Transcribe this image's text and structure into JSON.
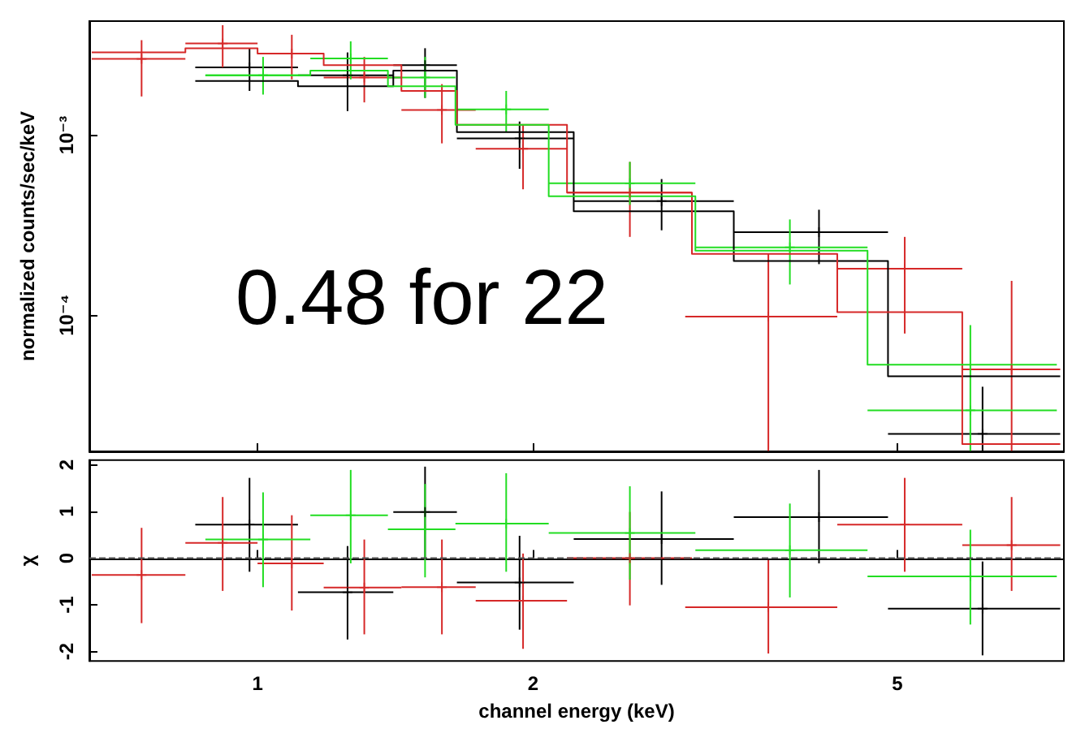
{
  "chart_data": [
    {
      "type": "scatter",
      "ylabel": "normalized counts/sec/keV",
      "log": "xy",
      "xlim": [
        0.655,
        7.6
      ],
      "ylim": [
        1.75e-05,
        0.0043
      ],
      "xticks": [
        {
          "value": 1,
          "label": null
        },
        {
          "value": 2,
          "label": null
        },
        {
          "value": 5,
          "label": null
        }
      ],
      "yticks": [
        {
          "value": 0.001,
          "label": "10⁻³"
        },
        {
          "value": 0.0001,
          "label": "10⁻⁴"
        }
      ],
      "tick_labels": "y",
      "marker": "cross",
      "annotations": [
        "0.48 for 22"
      ],
      "series": [
        {
          "color": "#000000",
          "x": [
            0.98,
            1.254,
            1.524,
            1.933,
            2.763,
            4.105,
            6.194
          ],
          "values": [
            0.00238,
            0.00215,
            0.00245,
            0.00096,
            0.00043,
            0.000289,
            2.19e-05
          ],
          "errors": [
            [
              0.00176,
              0.00304
            ],
            [
              0.00136,
              0.00288
            ],
            [
              0.00161,
              0.00304
            ],
            [
              0.00065,
              0.00119
            ],
            [
              0.000296,
              0.00057
            ],
            [
              0.000192,
              0.000385
            ],
            [
              1.76e-05,
              4e-05
            ]
          ],
          "xerrors": [
            [
              0.855,
              1.107
            ],
            [
              1.107,
              1.407
            ],
            [
              1.407,
              1.651
            ],
            [
              1.651,
              2.215
            ],
            [
              2.215,
              3.313
            ],
            [
              3.313,
              4.883
            ],
            [
              4.883,
              7.53
            ]
          ]
        },
        {
          "color": "#d62828",
          "x": [
            0.747,
            0.916,
            1.09,
            1.308,
            1.59,
            1.95,
            2.551,
            3.614,
            5.093,
            6.664
          ],
          "values": [
            0.00265,
            0.00323,
            0.00284,
            0.00209,
            0.00138,
            0.00084,
            0.00048,
            9.8e-05,
            0.000181,
            5e-05
          ],
          "errors": [
            [
              0.00164,
              0.00337
            ],
            [
              0.00238,
              0.00408
            ],
            [
              0.00204,
              0.00361
            ],
            [
              0.00152,
              0.00272
            ],
            [
              0.0009,
              0.00192
            ],
            [
              0.0005,
              0.00114
            ],
            [
              0.000272,
              0.00071
            ],
            [
              1.76e-05,
              0.000219
            ],
            [
              7.9e-05,
              0.000272
            ],
            [
              1.76e-05,
              0.000155
            ]
          ],
          "xerrors": [
            [
              0.659,
              0.834
            ],
            [
              0.834,
              1.0
            ],
            [
              1.0,
              1.181
            ],
            [
              1.181,
              1.436
            ],
            [
              1.436,
              1.731
            ],
            [
              1.731,
              2.178
            ],
            [
              2.178,
              2.982
            ],
            [
              2.932,
              4.298
            ],
            [
              4.298,
              5.886
            ],
            [
              5.886,
              7.53
            ]
          ]
        },
        {
          "color": "#22dd22",
          "x": [
            1.014,
            1.264,
            1.524,
            1.869,
            2.551,
            3.815,
            6.007
          ],
          "values": [
            0.00215,
            0.00267,
            0.00209,
            0.00139,
            0.00054,
            0.000238,
            2.96e-05
          ],
          "errors": [
            [
              0.00168,
              0.00272
            ],
            [
              0.00204,
              0.00332
            ],
            [
              0.00161,
              0.00272
            ],
            [
              0.00104,
              0.00176
            ],
            [
              0.00041,
              0.00071
            ],
            [
              0.000148,
              0.00034
            ],
            [
              1.76e-05,
              8.8e-05
            ]
          ],
          "xerrors": [
            [
              0.877,
              1.142
            ],
            [
              1.142,
              1.388
            ],
            [
              1.388,
              1.645
            ],
            [
              1.645,
              2.08
            ],
            [
              2.08,
              3.008
            ],
            [
              3.008,
              4.638
            ],
            [
              4.638,
              7.466
            ]
          ]
        },
        {
          "type": "step",
          "marker": "none",
          "color": "#000000",
          "x": [
            0.855,
            1.107,
            1.407,
            1.651,
            2.215,
            3.313,
            4.883,
            7.53
          ],
          "values": [
            0.002,
            0.00187,
            0.00228,
            0.00104,
            0.000378,
            0.0002,
            4.57e-05,
            4.57e-05
          ]
        },
        {
          "type": "step",
          "marker": "none",
          "color": "#d62828",
          "x": [
            0.659,
            0.834,
            1.0,
            1.181,
            1.436,
            1.651,
            2.178,
            2.982,
            4.298,
            5.886,
            7.53
          ],
          "values": [
            0.00288,
            0.00304,
            0.00284,
            0.00245,
            0.00176,
            0.00114,
            0.00048,
            0.000219,
            0.000104,
            1.92e-05,
            1.92e-05
          ]
        },
        {
          "type": "step",
          "marker": "none",
          "color": "#22dd22",
          "x": [
            0.877,
            1.142,
            1.388,
            1.645,
            2.08,
            3.008,
            4.638,
            7.466
          ],
          "values": [
            0.00215,
            0.00228,
            0.00187,
            0.00114,
            0.000457,
            0.000228,
            5.3e-05,
            5.3e-05
          ]
        }
      ]
    },
    {
      "type": "scatter",
      "xlabel": "channel energy (keV)",
      "ylabel": "χ",
      "log": "x",
      "xlim": [
        0.655,
        7.6
      ],
      "ylim": [
        -2.2,
        2.1
      ],
      "xticks": [
        1,
        2,
        5
      ],
      "yticks": [
        -2,
        -1,
        0,
        1,
        2
      ],
      "marker": "cross",
      "ref_lines": [
        {
          "axis": "y",
          "value": 0,
          "color": "#555555",
          "line_style": "dashed"
        }
      ],
      "series": [
        {
          "color": "#000000",
          "x": [
            0.98,
            1.254,
            1.524,
            1.933,
            2.763,
            4.105,
            6.194
          ],
          "values": [
            0.72,
            -0.73,
            0.99,
            -0.52,
            0.41,
            0.88,
            -1.08
          ],
          "errors": [
            [
              -0.29,
              1.72
            ],
            [
              -1.74,
              0.26
            ],
            [
              -0.04,
              1.96
            ],
            [
              -1.53,
              0.48
            ],
            [
              -0.57,
              1.43
            ],
            [
              -0.11,
              1.89
            ],
            [
              -2.08,
              -0.07
            ]
          ],
          "xerrors": [
            [
              0.855,
              1.107
            ],
            [
              1.107,
              1.407
            ],
            [
              1.407,
              1.651
            ],
            [
              1.651,
              2.215
            ],
            [
              2.215,
              3.313
            ],
            [
              3.313,
              4.883
            ],
            [
              4.883,
              7.53
            ]
          ]
        },
        {
          "color": "#d62828",
          "x": [
            0.747,
            0.916,
            1.09,
            1.308,
            1.59,
            1.95,
            2.551,
            3.614,
            5.093,
            6.664
          ],
          "values": [
            -0.36,
            0.33,
            -0.11,
            -0.63,
            -0.62,
            -0.91,
            0.0,
            -1.05,
            0.72,
            0.28
          ],
          "errors": [
            [
              -1.39,
              0.65
            ],
            [
              -0.7,
              1.31
            ],
            [
              -1.12,
              0.92
            ],
            [
              -1.63,
              0.4
            ],
            [
              -1.63,
              0.4
            ],
            [
              -1.94,
              0.1
            ],
            [
              -1.01,
              0.99
            ],
            [
              -2.04,
              -0.04
            ],
            [
              -0.29,
              1.72
            ],
            [
              -0.7,
              1.31
            ]
          ],
          "xerrors": [
            [
              0.659,
              0.834
            ],
            [
              0.834,
              1.0
            ],
            [
              1.0,
              1.181
            ],
            [
              1.181,
              1.436
            ],
            [
              1.436,
              1.731
            ],
            [
              1.731,
              2.178
            ],
            [
              2.178,
              2.982
            ],
            [
              2.932,
              4.298
            ],
            [
              4.298,
              5.886
            ],
            [
              5.886,
              7.53
            ]
          ]
        },
        {
          "color": "#22dd22",
          "x": [
            1.014,
            1.264,
            1.524,
            1.869,
            2.551,
            3.815,
            6.007
          ],
          "values": [
            0.4,
            0.92,
            0.62,
            0.74,
            0.54,
            0.17,
            -0.39
          ],
          "errors": [
            [
              -0.62,
              1.41
            ],
            [
              -0.11,
              1.89
            ],
            [
              -0.41,
              1.59
            ],
            [
              -0.29,
              1.82
            ],
            [
              -0.46,
              1.54
            ],
            [
              -0.84,
              1.17
            ],
            [
              -1.42,
              0.61
            ]
          ],
          "xerrors": [
            [
              0.877,
              1.142
            ],
            [
              1.142,
              1.388
            ],
            [
              1.388,
              1.645
            ],
            [
              1.645,
              2.08
            ],
            [
              2.08,
              3.008
            ],
            [
              3.008,
              4.638
            ],
            [
              4.638,
              7.466
            ]
          ]
        }
      ]
    }
  ]
}
